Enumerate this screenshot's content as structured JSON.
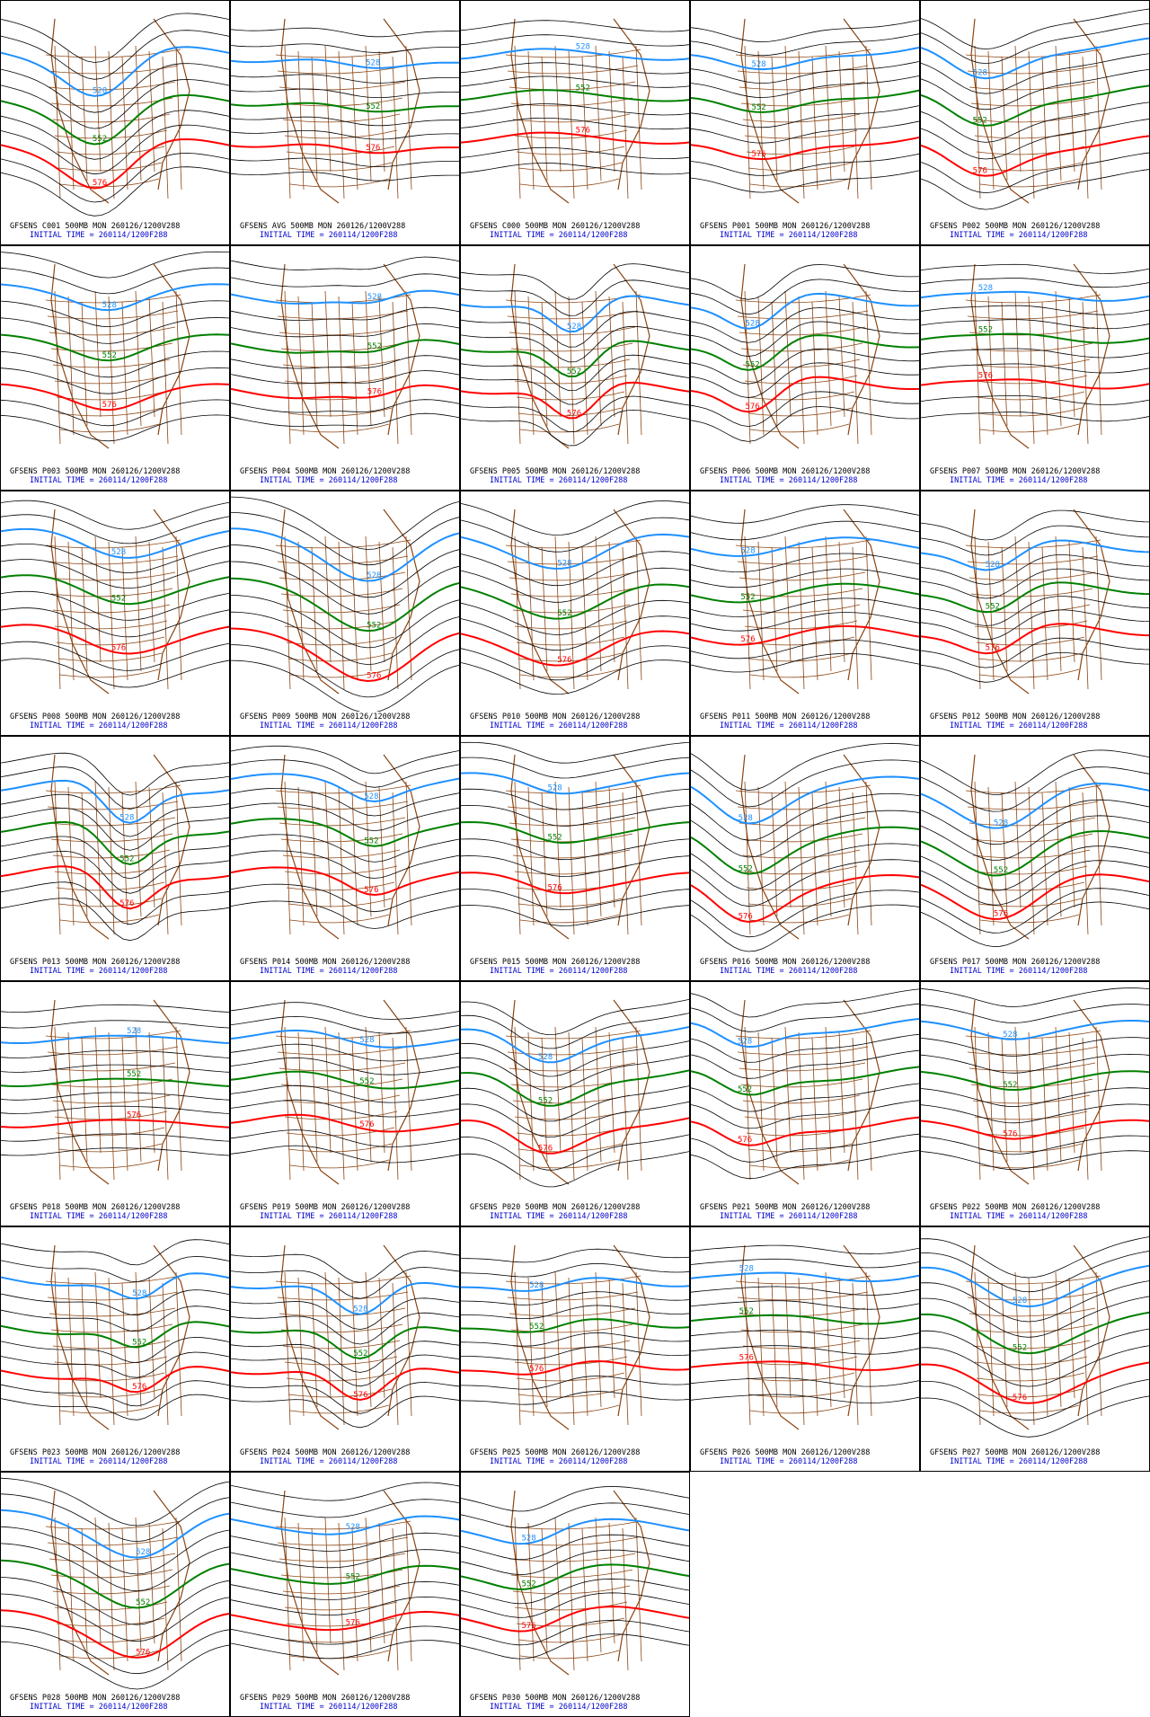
{
  "panels": [
    {
      "caption": "GFSENS C001 500MB MON 260126/1200V288",
      "init": "INITIAL TIME = 260114/1200F288",
      "contours": [
        "528",
        "552",
        "576"
      ]
    },
    {
      "caption": "GFSENS AVG 500MB MON 260126/1200V288",
      "init": "INITIAL TIME = 260114/1200F288",
      "contours": [
        "528",
        "552",
        "576"
      ]
    },
    {
      "caption": "GFSENS C000 500MB MON 260126/1200V288",
      "init": "INITIAL TIME = 260114/1200F288",
      "contours": [
        "528",
        "552",
        "576"
      ]
    },
    {
      "caption": "GFSENS P001 500MB MON 260126/1200V288",
      "init": "INITIAL TIME = 260114/1200F288",
      "contours": [
        "528",
        "552",
        "576"
      ]
    },
    {
      "caption": "GFSENS P002 500MB MON 260126/1200V288",
      "init": "INITIAL TIME = 260114/1200F288",
      "contours": [
        "528",
        "552",
        "576"
      ]
    },
    {
      "caption": "GFSENS P003 500MB MON 260126/1200V288",
      "init": "INITIAL TIME = 260114/1200F288",
      "contours": [
        "528",
        "552",
        "576"
      ]
    },
    {
      "caption": "GFSENS P004 500MB MON 260126/1200V288",
      "init": "INITIAL TIME = 260114/1200F288",
      "contours": [
        "528",
        "552",
        "576"
      ]
    },
    {
      "caption": "GFSENS P005 500MB MON 260126/1200V288",
      "init": "INITIAL TIME = 260114/1200F288",
      "contours": [
        "528",
        "552",
        "576"
      ]
    },
    {
      "caption": "GFSENS P006 500MB MON 260126/1200V288",
      "init": "INITIAL TIME = 260114/1200F288",
      "contours": [
        "528",
        "552",
        "576"
      ]
    },
    {
      "caption": "GFSENS P007 500MB MON 260126/1200V288",
      "init": "INITIAL TIME = 260114/1200F288",
      "contours": [
        "528",
        "552",
        "576"
      ]
    },
    {
      "caption": "GFSENS P008 500MB MON 260126/1200V288",
      "init": "INITIAL TIME = 260114/1200F288",
      "contours": [
        "528",
        "552",
        "576"
      ]
    },
    {
      "caption": "GFSENS P009 500MB MON 260126/1200V288",
      "init": "INITIAL TIME = 260114/1200F288",
      "contours": [
        "528",
        "552",
        "576"
      ]
    },
    {
      "caption": "GFSENS P010 500MB MON 260126/1200V288",
      "init": "INITIAL TIME = 260114/1200F288",
      "contours": [
        "528",
        "552",
        "576"
      ]
    },
    {
      "caption": "GFSENS P011 500MB MON 260126/1200V288",
      "init": "INITIAL TIME = 260114/1200F288",
      "contours": [
        "528",
        "552",
        "576"
      ]
    },
    {
      "caption": "GFSENS P012 500MB MON 260126/1200V288",
      "init": "INITIAL TIME = 260114/1200F288",
      "contours": [
        "528",
        "552",
        "576"
      ]
    },
    {
      "caption": "GFSENS P013 500MB MON 260126/1200V288",
      "init": "INITIAL TIME = 260114/1200F288",
      "contours": [
        "528",
        "552",
        "576"
      ]
    },
    {
      "caption": "GFSENS P014 500MB MON 260126/1200V288",
      "init": "INITIAL TIME = 260114/1200F288",
      "contours": [
        "528",
        "552",
        "576"
      ]
    },
    {
      "caption": "GFSENS P015 500MB MON 260126/1200V288",
      "init": "INITIAL TIME = 260114/1200F288",
      "contours": [
        "528",
        "552",
        "576"
      ]
    },
    {
      "caption": "GFSENS P016 500MB MON 260126/1200V288",
      "init": "INITIAL TIME = 260114/1200F288",
      "contours": [
        "528",
        "552",
        "576"
      ]
    },
    {
      "caption": "GFSENS P017 500MB MON 260126/1200V288",
      "init": "INITIAL TIME = 260114/1200F288",
      "contours": [
        "528",
        "552",
        "576"
      ]
    },
    {
      "caption": "GFSENS P018 500MB MON 260126/1200V288",
      "init": "INITIAL TIME = 260114/1200F288",
      "contours": [
        "528",
        "552",
        "576"
      ]
    },
    {
      "caption": "GFSENS P019 500MB MON 260126/1200V288",
      "init": "INITIAL TIME = 260114/1200F288",
      "contours": [
        "528",
        "552",
        "576"
      ]
    },
    {
      "caption": "GFSENS P020 500MB MON 260126/1200V288",
      "init": "INITIAL TIME = 260114/1200F288",
      "contours": [
        "528",
        "552",
        "576"
      ]
    },
    {
      "caption": "GFSENS P021 500MB MON 260126/1200V288",
      "init": "INITIAL TIME = 260114/1200F288",
      "contours": [
        "528",
        "552",
        "576"
      ]
    },
    {
      "caption": "GFSENS P022 500MB MON 260126/1200V288",
      "init": "INITIAL TIME = 260114/1200F288",
      "contours": [
        "528",
        "552",
        "576"
      ]
    },
    {
      "caption": "GFSENS P023 500MB MON 260126/1200V288",
      "init": "INITIAL TIME = 260114/1200F288",
      "contours": [
        "528",
        "552",
        "576"
      ]
    },
    {
      "caption": "GFSENS P024 500MB MON 260126/1200V288",
      "init": "INITIAL TIME = 260114/1200F288",
      "contours": [
        "528",
        "552",
        "576"
      ]
    },
    {
      "caption": "GFSENS P025 500MB MON 260126/1200V288",
      "init": "INITIAL TIME = 260114/1200F288",
      "contours": [
        "528",
        "552",
        "576"
      ]
    },
    {
      "caption": "GFSENS P026 500MB MON 260126/1200V288",
      "init": "INITIAL TIME = 260114/1200F288",
      "contours": [
        "528",
        "552",
        "576"
      ]
    },
    {
      "caption": "GFSENS P027 500MB MON 260126/1200V288",
      "init": "INITIAL TIME = 260114/1200F288",
      "contours": [
        "528",
        "552",
        "576"
      ]
    },
    {
      "caption": "GFSENS P028 500MB MON 260126/1200V288",
      "init": "INITIAL TIME = 260114/1200F288",
      "contours": [
        "528",
        "552",
        "576"
      ]
    },
    {
      "caption": "GFSENS P029 500MB MON 260126/1200V288",
      "init": "INITIAL TIME = 260114/1200F288",
      "contours": [
        "528",
        "552",
        "576"
      ]
    },
    {
      "caption": "GFSENS P030 500MB MON 260126/1200V288",
      "init": "INITIAL TIME = 260114/1200F288",
      "contours": [
        "528",
        "552",
        "576"
      ]
    }
  ]
}
